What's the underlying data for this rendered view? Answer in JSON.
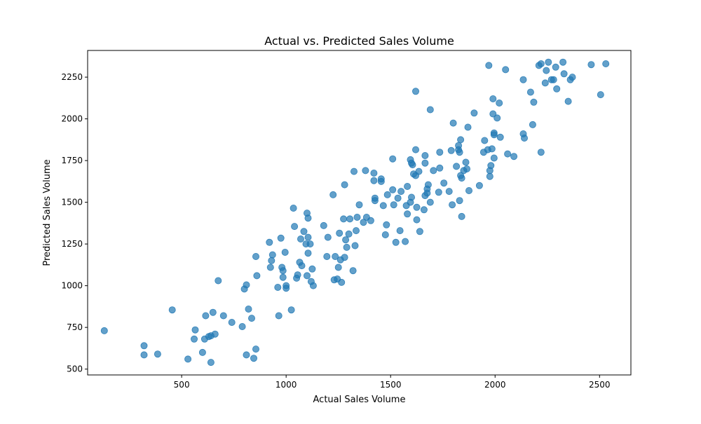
{
  "chart_data": {
    "type": "scatter",
    "title": "Actual vs. Predicted Sales Volume",
    "xlabel": "Actual Sales Volume",
    "ylabel": "Predicted Sales Volume",
    "xlim": [
      50,
      2650
    ],
    "ylim": [
      465,
      2410
    ],
    "xticks": [
      500,
      1000,
      1500,
      2000,
      2500
    ],
    "yticks": [
      500,
      750,
      1000,
      1250,
      1500,
      1750,
      2000,
      2250
    ],
    "grid": false,
    "legend": "none",
    "marker_color": "#1f77b4",
    "marker_opacity": 0.7,
    "points": [
      [
        130,
        730
      ],
      [
        320,
        640
      ],
      [
        320,
        585
      ],
      [
        385,
        590
      ],
      [
        455,
        855
      ],
      [
        530,
        560
      ],
      [
        560,
        680
      ],
      [
        565,
        735
      ],
      [
        600,
        600
      ],
      [
        610,
        680
      ],
      [
        615,
        820
      ],
      [
        630,
        695
      ],
      [
        640,
        700
      ],
      [
        640,
        540
      ],
      [
        650,
        840
      ],
      [
        660,
        710
      ],
      [
        675,
        1030
      ],
      [
        700,
        820
      ],
      [
        740,
        780
      ],
      [
        790,
        755
      ],
      [
        800,
        980
      ],
      [
        810,
        1005
      ],
      [
        810,
        585
      ],
      [
        820,
        860
      ],
      [
        835,
        805
      ],
      [
        845,
        565
      ],
      [
        855,
        620
      ],
      [
        855,
        1175
      ],
      [
        860,
        1060
      ],
      [
        920,
        1260
      ],
      [
        925,
        1110
      ],
      [
        930,
        1150
      ],
      [
        935,
        1185
      ],
      [
        960,
        990
      ],
      [
        965,
        820
      ],
      [
        975,
        1285
      ],
      [
        980,
        1110
      ],
      [
        985,
        1050
      ],
      [
        985,
        1090
      ],
      [
        995,
        1200
      ],
      [
        1000,
        1000
      ],
      [
        1000,
        985
      ],
      [
        1025,
        855
      ],
      [
        1035,
        1465
      ],
      [
        1040,
        1355
      ],
      [
        1050,
        1045
      ],
      [
        1055,
        1065
      ],
      [
        1065,
        1140
      ],
      [
        1070,
        1280
      ],
      [
        1075,
        1120
      ],
      [
        1085,
        1325
      ],
      [
        1095,
        1250
      ],
      [
        1100,
        1435
      ],
      [
        1100,
        1060
      ],
      [
        1105,
        1405
      ],
      [
        1105,
        1195
      ],
      [
        1105,
        1290
      ],
      [
        1115,
        1250
      ],
      [
        1120,
        1025
      ],
      [
        1125,
        1100
      ],
      [
        1130,
        1000
      ],
      [
        1180,
        1360
      ],
      [
        1195,
        1175
      ],
      [
        1200,
        1290
      ],
      [
        1225,
        1545
      ],
      [
        1230,
        1035
      ],
      [
        1235,
        1175
      ],
      [
        1245,
        1040
      ],
      [
        1250,
        1110
      ],
      [
        1255,
        1315
      ],
      [
        1260,
        1155
      ],
      [
        1265,
        1020
      ],
      [
        1275,
        1400
      ],
      [
        1280,
        1605
      ],
      [
        1280,
        1170
      ],
      [
        1285,
        1275
      ],
      [
        1290,
        1230
      ],
      [
        1300,
        1310
      ],
      [
        1305,
        1400
      ],
      [
        1320,
        1090
      ],
      [
        1325,
        1685
      ],
      [
        1330,
        1240
      ],
      [
        1335,
        1330
      ],
      [
        1340,
        1410
      ],
      [
        1350,
        1485
      ],
      [
        1370,
        1380
      ],
      [
        1380,
        1690
      ],
      [
        1385,
        1410
      ],
      [
        1405,
        1390
      ],
      [
        1420,
        1630
      ],
      [
        1420,
        1675
      ],
      [
        1425,
        1510
      ],
      [
        1425,
        1525
      ],
      [
        1455,
        1625
      ],
      [
        1455,
        1640
      ],
      [
        1465,
        1480
      ],
      [
        1475,
        1305
      ],
      [
        1480,
        1365
      ],
      [
        1485,
        1545
      ],
      [
        1510,
        1760
      ],
      [
        1510,
        1575
      ],
      [
        1515,
        1485
      ],
      [
        1525,
        1260
      ],
      [
        1535,
        1525
      ],
      [
        1545,
        1330
      ],
      [
        1550,
        1565
      ],
      [
        1570,
        1265
      ],
      [
        1575,
        1480
      ],
      [
        1580,
        1595
      ],
      [
        1580,
        1430
      ],
      [
        1595,
        1500
      ],
      [
        1595,
        1755
      ],
      [
        1600,
        1530
      ],
      [
        1600,
        1735
      ],
      [
        1605,
        1725
      ],
      [
        1610,
        1670
      ],
      [
        1620,
        1815
      ],
      [
        1620,
        1660
      ],
      [
        1620,
        2165
      ],
      [
        1625,
        1470
      ],
      [
        1625,
        1395
      ],
      [
        1635,
        1685
      ],
      [
        1640,
        1325
      ],
      [
        1660,
        1455
      ],
      [
        1665,
        1780
      ],
      [
        1665,
        1735
      ],
      [
        1665,
        1540
      ],
      [
        1675,
        1555
      ],
      [
        1675,
        1580
      ],
      [
        1680,
        1605
      ],
      [
        1690,
        1500
      ],
      [
        1690,
        2055
      ],
      [
        1705,
        1690
      ],
      [
        1730,
        1560
      ],
      [
        1735,
        1800
      ],
      [
        1735,
        1705
      ],
      [
        1755,
        1615
      ],
      [
        1780,
        1565
      ],
      [
        1790,
        1810
      ],
      [
        1795,
        1485
      ],
      [
        1800,
        1975
      ],
      [
        1815,
        1715
      ],
      [
        1825,
        1840
      ],
      [
        1825,
        1815
      ],
      [
        1830,
        1510
      ],
      [
        1830,
        1800
      ],
      [
        1835,
        1660
      ],
      [
        1835,
        1875
      ],
      [
        1840,
        1645
      ],
      [
        1840,
        1415
      ],
      [
        1850,
        1690
      ],
      [
        1860,
        1740
      ],
      [
        1865,
        1700
      ],
      [
        1870,
        1950
      ],
      [
        1875,
        1570
      ],
      [
        1900,
        2035
      ],
      [
        1925,
        1600
      ],
      [
        1945,
        1800
      ],
      [
        1950,
        1870
      ],
      [
        1965,
        1815
      ],
      [
        1970,
        2320
      ],
      [
        1975,
        1655
      ],
      [
        1975,
        1690
      ],
      [
        1980,
        1720
      ],
      [
        1985,
        1820
      ],
      [
        1990,
        2120
      ],
      [
        1990,
        2030
      ],
      [
        1995,
        1905
      ],
      [
        1995,
        1915
      ],
      [
        1995,
        1765
      ],
      [
        2010,
        2005
      ],
      [
        2020,
        2095
      ],
      [
        2025,
        1890
      ],
      [
        2050,
        2295
      ],
      [
        2060,
        1790
      ],
      [
        2090,
        1775
      ],
      [
        2135,
        2235
      ],
      [
        2135,
        1910
      ],
      [
        2140,
        1885
      ],
      [
        2170,
        2160
      ],
      [
        2180,
        1965
      ],
      [
        2185,
        2100
      ],
      [
        2210,
        2320
      ],
      [
        2220,
        1800
      ],
      [
        2220,
        2330
      ],
      [
        2240,
        2215
      ],
      [
        2245,
        2290
      ],
      [
        2255,
        2340
      ],
      [
        2270,
        2235
      ],
      [
        2280,
        2235
      ],
      [
        2290,
        2310
      ],
      [
        2295,
        2180
      ],
      [
        2325,
        2340
      ],
      [
        2330,
        2270
      ],
      [
        2350,
        2105
      ],
      [
        2360,
        2235
      ],
      [
        2370,
        2250
      ],
      [
        2460,
        2325
      ],
      [
        2505,
        2145
      ],
      [
        2530,
        2330
      ]
    ]
  }
}
